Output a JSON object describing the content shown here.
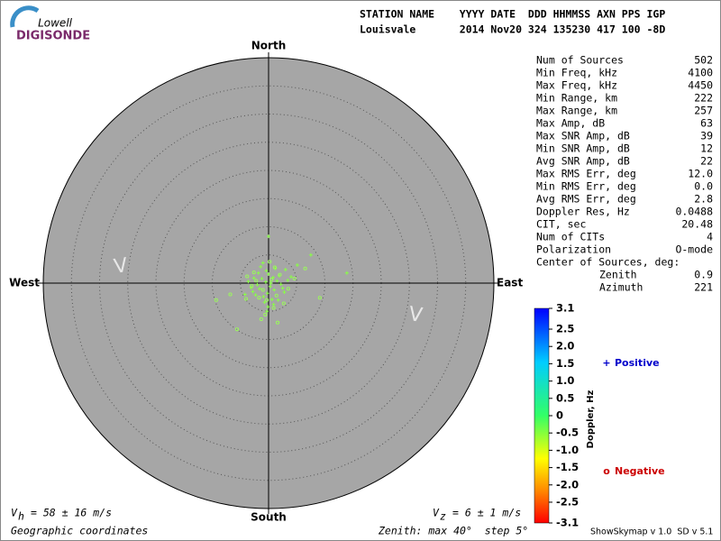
{
  "logo": {
    "top": "Lowell",
    "bottom": "DIGISONDE"
  },
  "header": {
    "line1": "STATION NAME    YYYY DATE  DDD HHMMSS AXN PPS IGP",
    "line2": "Louisvale       2014 Nov20 324 135230 417 100 -8D"
  },
  "stats": {
    "rows": [
      [
        "Num of Sources",
        "502"
      ],
      [
        "Min Freq, kHz",
        "4100"
      ],
      [
        "Max Freq, kHz",
        "4450"
      ],
      [
        "Min Range, km",
        "222"
      ],
      [
        "Max Range, km",
        "257"
      ],
      [
        "Max Amp, dB",
        "63"
      ],
      [
        "Max SNR Amp, dB",
        "39"
      ],
      [
        "Min SNR Amp, dB",
        "12"
      ],
      [
        "Avg SNR Amp, dB",
        "22"
      ],
      [
        "Max RMS Err, deg",
        "12.0"
      ],
      [
        "Min RMS Err, deg",
        "0.0"
      ],
      [
        "Avg RMS Err, deg",
        "2.8"
      ],
      [
        "Doppler Res, Hz",
        "0.0488"
      ],
      [
        "CIT, sec",
        "20.48"
      ],
      [
        "Num of CITs",
        "4"
      ],
      [
        "Polarization",
        "O-mode"
      ]
    ],
    "center_of_sources": {
      "label": "Center of Sources, deg:",
      "rows": [
        [
          "Zenith",
          "0.9"
        ],
        [
          "Azimuth",
          "221"
        ]
      ]
    }
  },
  "footer": {
    "vh_symbol": "V",
    "vh_sub": "h",
    "vh_text": "= 58 ± 16 m/s",
    "vz_symbol": "V",
    "vz_sub": "z",
    "vz_text": "= 6 ± 1 m/s",
    "coords": "Geographic coordinates",
    "zenith": "Zenith: max 40°  step 5°",
    "version": "ShowSkymap v 1.0  SD v 5.1"
  },
  "chart_data": {
    "type": "scatter",
    "directions": {
      "north": "North",
      "south": "South",
      "east": "East",
      "west": "West"
    },
    "annotations": [
      "V",
      "V"
    ],
    "rlim": [
      0,
      40
    ],
    "rticks": [
      5,
      10,
      15,
      20,
      25,
      30,
      35
    ],
    "series": [
      {
        "name": "Positive",
        "symbol": "+",
        "label_color": "#0000cc",
        "color": "#88ff44",
        "x": [
          -0.5,
          0.3,
          -1.2,
          1.0,
          -2.0,
          0.8,
          -0.2,
          1.5,
          -1.6,
          2.2,
          -2.6,
          0.0,
          -0.9,
          1.9,
          -3.1,
          2.8,
          -0.4,
          0.6,
          -1.8,
          3.4,
          -2.3,
          1.2,
          -0.7,
          0.4,
          -1.4,
          2.5,
          -3.6,
          4.0,
          -0.1,
          1.7,
          13.9,
          0.0,
          7.5,
          -4.2,
          5.1,
          -1.0,
          0.9,
          -2.8,
          3.0,
          -0.3
        ],
        "values": [
          0.2,
          -0.6,
          0.8,
          -1.2,
          -0.3,
          1.0,
          -1.8,
          0.4,
          -1.0,
          -0.2,
          0.9,
          1.6,
          -2.4,
          1.3,
          -0.8,
          -1.6,
          2.2,
          -2.9,
          1.8,
          0.5,
          -2.1,
          2.6,
          -3.4,
          0.0,
          2.9,
          -0.9,
          0.3,
          1.1,
          -4.2,
          -3.0,
          1.8,
          8.3,
          5.0,
          -2.0,
          3.2,
          3.6,
          -3.8,
          -1.5,
          2.4,
          -5.0
        ]
      },
      {
        "name": "Negative",
        "symbol": "o",
        "label_color": "#cc0000",
        "color": "#99ff55",
        "x": [
          -1.0,
          0.5,
          -2.2,
          1.4,
          -0.3,
          2.0,
          -1.7,
          -3.0,
          0.9,
          3.5,
          -2.6,
          1.1,
          -0.6,
          4.6,
          -4.0,
          -5.6,
          -9.3,
          9.1,
          6.5,
          -6.8,
          0.2,
          -1.3,
          2.7,
          -3.8,
          1.6
        ],
        "values": [
          -1.2,
          0.6,
          0.4,
          -2.2,
          -3.0,
          1.5,
          -2.6,
          -0.5,
          -4.4,
          -1.0,
          1.9,
          2.8,
          -5.6,
          0.8,
          -2.8,
          -8.2,
          -3.0,
          -2.6,
          2.6,
          -2.0,
          3.8,
          -6.4,
          -3.6,
          1.2,
          -7.0
        ]
      }
    ],
    "colorbar": {
      "label": "Doppler, Hz",
      "clim": [
        -3.1,
        3.1
      ],
      "ticks": [
        3.1,
        2.5,
        {
          "value": 2,
          "label": "2.0"
        },
        1.5,
        {
          "value": 1,
          "label": "1.0"
        },
        0.5,
        0,
        -0.5,
        {
          "value": -1,
          "label": "-1.0"
        },
        -1.5,
        {
          "value": -2,
          "label": "-2.0"
        },
        -2.5,
        -3.1
      ]
    }
  }
}
